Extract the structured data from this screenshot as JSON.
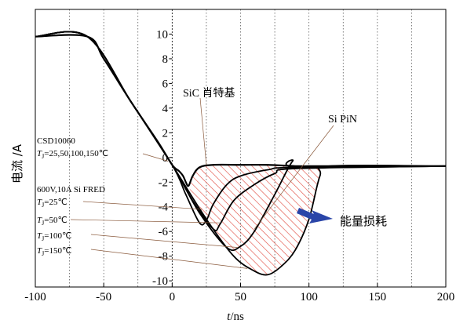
{
  "chart_data": {
    "type": "line",
    "xlabel": "t/ns",
    "ylabel": "电流 /A",
    "xlim": [
      -100,
      200
    ],
    "ylim": [
      -10.5,
      12
    ],
    "xticks": [
      -100,
      -50,
      0,
      50,
      100,
      150,
      200
    ],
    "yticks": [
      10,
      8,
      6,
      4,
      2,
      0,
      -2,
      -4,
      -6,
      -8,
      -10
    ],
    "grid": "dashed-vertical",
    "series": [
      {
        "x": [
          -100,
          -62,
          -50,
          -30,
          -10,
          0,
          5,
          8,
          10,
          12,
          15,
          20,
          30,
          50,
          70,
          90,
          110,
          150,
          200
        ],
        "y": [
          9.8,
          9.8,
          8.0,
          4.5,
          1.2,
          -0.6,
          -1.1,
          -1.5,
          -2.0,
          -2.3,
          -1.5,
          -0.8,
          -0.6,
          -0.6,
          -0.6,
          -0.7,
          -0.7,
          -0.7,
          -0.7
        ]
      },
      {
        "x": [
          -100,
          -62,
          -30,
          0,
          10,
          20,
          25,
          30,
          40,
          50,
          70,
          90,
          200
        ],
        "y": [
          9.8,
          9.8,
          4.5,
          -0.6,
          -3.0,
          -5.3,
          -5.1,
          -3.8,
          -2.2,
          -1.5,
          -1.0,
          -0.8,
          -0.7
        ]
      },
      {
        "x": [
          -100,
          -62,
          -30,
          0,
          15,
          30,
          35,
          45,
          60,
          75,
          90,
          200
        ],
        "y": [
          9.8,
          9.8,
          4.5,
          -0.6,
          -3.5,
          -5.8,
          -5.4,
          -3.5,
          -2.2,
          -1.3,
          -0.9,
          -0.7
        ]
      },
      {
        "x": [
          -100,
          -62,
          -30,
          0,
          20,
          40,
          50,
          60,
          75,
          88,
          92,
          200
        ],
        "y": [
          9.8,
          9.8,
          4.5,
          -0.6,
          -4.5,
          -7.3,
          -7.2,
          -6.0,
          -3.0,
          -0.3,
          -0.8,
          -0.7
        ]
      },
      {
        "x": [
          -100,
          -62,
          -30,
          0,
          25,
          45,
          60,
          70,
          80,
          90,
          100,
          108,
          115,
          200
        ],
        "y": [
          9.8,
          9.8,
          4.5,
          -0.6,
          -5.0,
          -8.0,
          -9.2,
          -9.5,
          -8.8,
          -7.5,
          -5.0,
          -1.5,
          -0.7,
          -0.7
        ]
      }
    ],
    "annotations": [
      "SiC 肖特基",
      "Si PiN",
      "CSD10060",
      "T_J=25,50,100,150℃",
      "600V,10A Si FRED",
      "T_J=25℃",
      "T_J=50℃",
      "T_J=100℃",
      "T_J=150℃",
      "能量损耗"
    ]
  },
  "labels": {
    "sic": "SiC 肖特基",
    "sipin": "Si PiN",
    "csd": "CSD10060",
    "csd_t": "=25,50,100,150℃",
    "fred": "600V,10A Si FRED",
    "t25": "=25℃",
    "t50": "=50℃",
    "t100": "=100℃",
    "t150": "=150℃",
    "loss": "能量损耗",
    "tj": "T",
    "tj_sub": "J",
    "y_axis": "电流 /A",
    "x_axis_italic": "t",
    "x_axis_unit": "/ns"
  },
  "colors": {
    "curve": "#000000",
    "hatch": "#e0463a",
    "arrow": "#2a45a8",
    "grid": "#444444"
  }
}
